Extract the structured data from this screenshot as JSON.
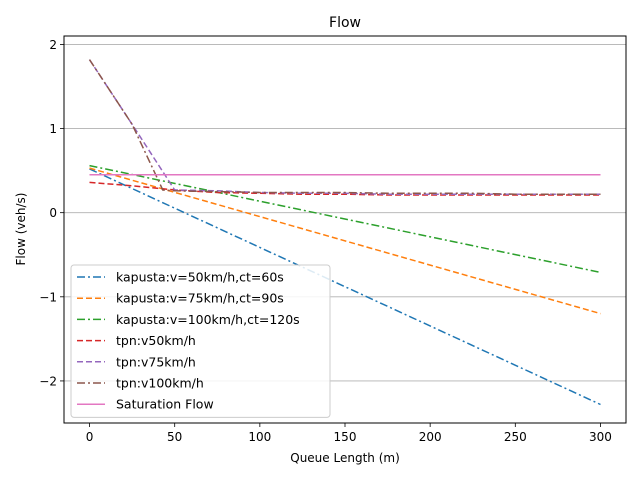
{
  "chart_data": {
    "type": "line",
    "title": "Flow",
    "xlabel": "Queue Length (m)",
    "ylabel": "Flow (veh/s)",
    "xlim": [
      -15,
      315
    ],
    "ylim": [
      -2.5,
      2.1
    ],
    "xticks": [
      0,
      50,
      100,
      150,
      200,
      250,
      300
    ],
    "xtick_labels": [
      "0",
      "50",
      "100",
      "150",
      "200",
      "250",
      "300"
    ],
    "yticks": [
      -2,
      -1,
      0,
      1,
      2
    ],
    "ytick_labels": [
      "−2",
      "−1",
      "0",
      "1",
      "2"
    ],
    "grid": "horizontal",
    "legend_position": "lower-left",
    "series": [
      {
        "name": "kapusta:v=50km/h,ct=60s",
        "color": "#1f77b4",
        "style": "dashdot",
        "x": [
          0,
          300
        ],
        "y": [
          0.52,
          -2.28
        ]
      },
      {
        "name": "kapusta:v=75km/h,ct=90s",
        "color": "#ff7f0e",
        "style": "dashed",
        "x": [
          0,
          300
        ],
        "y": [
          0.53,
          -1.2
        ]
      },
      {
        "name": "kapusta:v=100km/h,ct=120s",
        "color": "#2ca02c",
        "style": "dashdot",
        "x": [
          0,
          300
        ],
        "y": [
          0.56,
          -0.71
        ]
      },
      {
        "name": "tpn:v50km/h",
        "color": "#d62728",
        "style": "dashed",
        "x": [
          0,
          25,
          50,
          75,
          100,
          125,
          150,
          175,
          200,
          225,
          250,
          275,
          300
        ],
        "y": [
          0.36,
          0.32,
          0.27,
          0.24,
          0.23,
          0.22,
          0.22,
          0.21,
          0.21,
          0.21,
          0.21,
          0.21,
          0.21
        ]
      },
      {
        "name": "tpn:v75km/h",
        "color": "#9467bd",
        "style": "dashed",
        "x": [
          0,
          25,
          50,
          75,
          100,
          125,
          150,
          175,
          200,
          225,
          250,
          275,
          300
        ],
        "y": [
          1.82,
          1.05,
          0.27,
          0.26,
          0.24,
          0.23,
          0.23,
          0.22,
          0.22,
          0.22,
          0.22,
          0.22,
          0.22
        ]
      },
      {
        "name": "tpn:v100km/h",
        "color": "#8c564b",
        "style": "dashdot",
        "x": [
          0,
          25,
          43,
          50,
          75,
          100,
          125,
          150,
          175,
          200,
          225,
          250,
          275,
          300
        ],
        "y": [
          1.82,
          1.05,
          0.27,
          0.26,
          0.25,
          0.24,
          0.24,
          0.24,
          0.23,
          0.23,
          0.23,
          0.22,
          0.22,
          0.22
        ]
      },
      {
        "name": "Saturation Flow",
        "color": "#e377c2",
        "style": "solid",
        "x": [
          0,
          300
        ],
        "y": [
          0.45,
          0.45
        ]
      }
    ]
  }
}
